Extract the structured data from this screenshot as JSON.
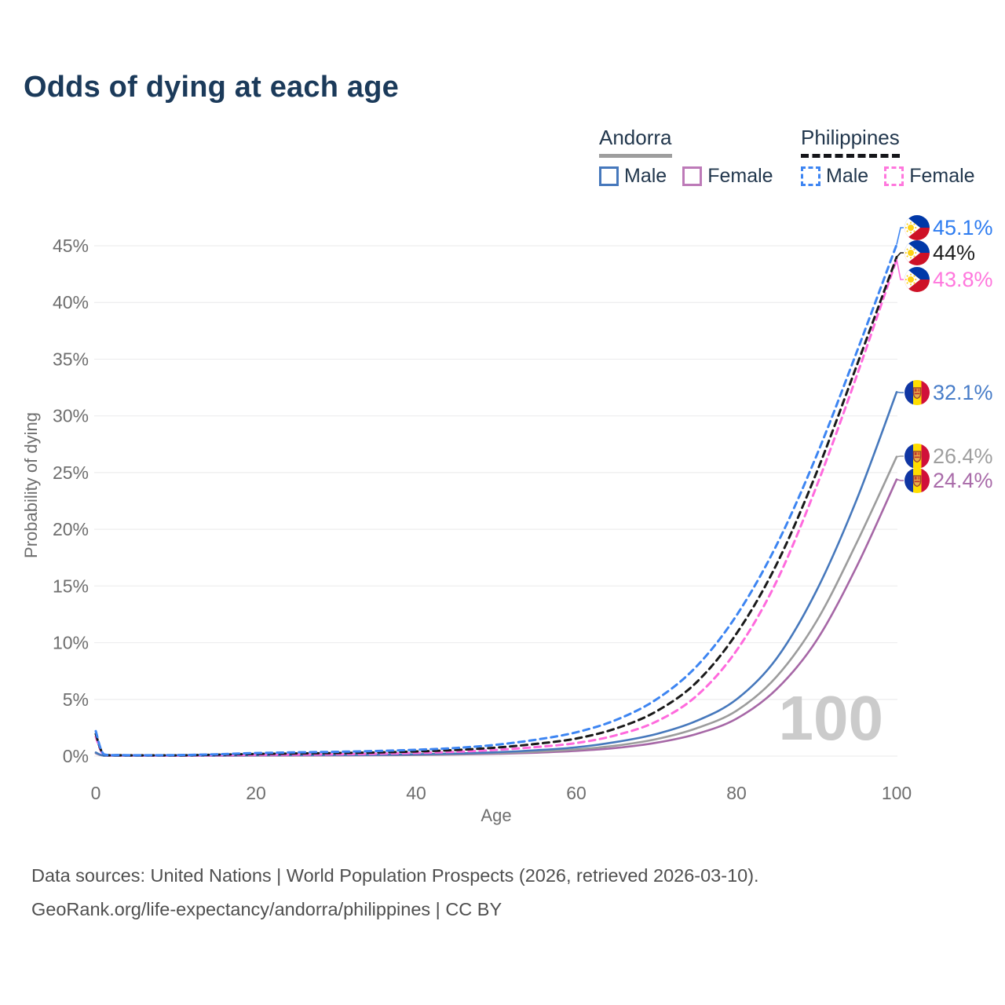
{
  "title": "Odds of dying at each age",
  "legend": {
    "andorra": {
      "label": "Andorra",
      "male": "Male",
      "female": "Female"
    },
    "philippines": {
      "label": "Philippines",
      "male": "Male",
      "female": "Female"
    }
  },
  "chart_data": {
    "type": "line",
    "title": "Odds of dying at each age",
    "xlabel": "Age",
    "ylabel": "Probability of dying",
    "x_ticks": [
      0,
      20,
      40,
      60,
      80,
      100
    ],
    "y_ticks": [
      "0%",
      "5%",
      "10%",
      "15%",
      "20%",
      "25%",
      "30%",
      "35%",
      "40%",
      "45%"
    ],
    "xlim": [
      0,
      100
    ],
    "ylim_pct": [
      0,
      45
    ],
    "grid": "horizontal-only",
    "legend_position": "top-right",
    "watermark": "100",
    "series": [
      {
        "name": "Philippines Male",
        "country": "Philippines",
        "sex": "Male",
        "style": "dashed",
        "color": "#3d85f2",
        "label_color": "#2e7cf0",
        "flag": "philippines",
        "end_label": "45.1%",
        "end_value_pct": 45.1,
        "points": [
          [
            0,
            2.2
          ],
          [
            1,
            0.16
          ],
          [
            3,
            0.09
          ],
          [
            5,
            0.08
          ],
          [
            10,
            0.09
          ],
          [
            15,
            0.16
          ],
          [
            20,
            0.27
          ],
          [
            25,
            0.33
          ],
          [
            30,
            0.38
          ],
          [
            35,
            0.45
          ],
          [
            40,
            0.56
          ],
          [
            45,
            0.72
          ],
          [
            50,
            1.0
          ],
          [
            55,
            1.45
          ],
          [
            60,
            2.1
          ],
          [
            65,
            3.2
          ],
          [
            70,
            5.0
          ],
          [
            75,
            7.9
          ],
          [
            80,
            12.4
          ],
          [
            85,
            18.6
          ],
          [
            90,
            26.5
          ],
          [
            95,
            35.6
          ],
          [
            100,
            45.1
          ]
        ]
      },
      {
        "name": "Philippines Both sexes",
        "country": "Philippines",
        "sex": "Both",
        "style": "dashed",
        "color": "#1a1a1a",
        "label_color": "#1f1f1f",
        "flag": "philippines",
        "end_label": "44%",
        "end_value_pct": 44.0,
        "points": [
          [
            0,
            1.95
          ],
          [
            1,
            0.14
          ],
          [
            3,
            0.08
          ],
          [
            5,
            0.07
          ],
          [
            10,
            0.07
          ],
          [
            15,
            0.12
          ],
          [
            20,
            0.19
          ],
          [
            25,
            0.23
          ],
          [
            30,
            0.27
          ],
          [
            35,
            0.32
          ],
          [
            40,
            0.41
          ],
          [
            45,
            0.54
          ],
          [
            50,
            0.75
          ],
          [
            55,
            1.08
          ],
          [
            60,
            1.55
          ],
          [
            65,
            2.45
          ],
          [
            70,
            3.95
          ],
          [
            75,
            6.5
          ],
          [
            80,
            10.8
          ],
          [
            85,
            16.9
          ],
          [
            90,
            25.0
          ],
          [
            95,
            34.4
          ],
          [
            100,
            44.0
          ]
        ]
      },
      {
        "name": "Philippines Female",
        "country": "Philippines",
        "sex": "Female",
        "style": "dashed",
        "color": "#ff6add",
        "label_color": "#ff77dd",
        "flag": "philippines",
        "end_label": "43.8%",
        "end_value_pct": 43.8,
        "points": [
          [
            0,
            1.7
          ],
          [
            1,
            0.12
          ],
          [
            3,
            0.07
          ],
          [
            5,
            0.06
          ],
          [
            10,
            0.05
          ],
          [
            15,
            0.08
          ],
          [
            20,
            0.11
          ],
          [
            25,
            0.13
          ],
          [
            30,
            0.16
          ],
          [
            35,
            0.21
          ],
          [
            40,
            0.28
          ],
          [
            45,
            0.38
          ],
          [
            50,
            0.55
          ],
          [
            55,
            0.8
          ],
          [
            60,
            1.15
          ],
          [
            65,
            1.85
          ],
          [
            70,
            3.05
          ],
          [
            75,
            5.3
          ],
          [
            80,
            9.3
          ],
          [
            85,
            15.4
          ],
          [
            90,
            23.8
          ],
          [
            95,
            33.5
          ],
          [
            100,
            43.8
          ]
        ]
      },
      {
        "name": "Andorra Male",
        "country": "Andorra",
        "sex": "Male",
        "style": "solid",
        "color": "#4678bc",
        "label_color": "#477cc8",
        "flag": "andorra",
        "end_label": "32.1%",
        "end_value_pct": 32.1,
        "points": [
          [
            0,
            0.32
          ],
          [
            1,
            0.04
          ],
          [
            3,
            0.02
          ],
          [
            5,
            0.02
          ],
          [
            10,
            0.02
          ],
          [
            15,
            0.05
          ],
          [
            20,
            0.08
          ],
          [
            25,
            0.09
          ],
          [
            30,
            0.1
          ],
          [
            35,
            0.12
          ],
          [
            40,
            0.16
          ],
          [
            45,
            0.23
          ],
          [
            50,
            0.34
          ],
          [
            55,
            0.52
          ],
          [
            60,
            0.78
          ],
          [
            65,
            1.25
          ],
          [
            70,
            1.95
          ],
          [
            75,
            3.1
          ],
          [
            80,
            5.0
          ],
          [
            85,
            8.6
          ],
          [
            90,
            14.6
          ],
          [
            95,
            22.6
          ],
          [
            100,
            32.1
          ]
        ]
      },
      {
        "name": "Andorra Both sexes",
        "country": "Andorra",
        "sex": "Both",
        "style": "solid",
        "color": "#9c9c9c",
        "label_color": "#9e9e9e",
        "flag": "andorra",
        "end_label": "26.4%",
        "end_value_pct": 26.4,
        "points": [
          [
            0,
            0.28
          ],
          [
            1,
            0.03
          ],
          [
            3,
            0.02
          ],
          [
            5,
            0.015
          ],
          [
            10,
            0.015
          ],
          [
            15,
            0.035
          ],
          [
            20,
            0.055
          ],
          [
            25,
            0.065
          ],
          [
            30,
            0.075
          ],
          [
            35,
            0.095
          ],
          [
            40,
            0.125
          ],
          [
            45,
            0.18
          ],
          [
            50,
            0.26
          ],
          [
            55,
            0.39
          ],
          [
            60,
            0.59
          ],
          [
            65,
            0.93
          ],
          [
            70,
            1.5
          ],
          [
            75,
            2.45
          ],
          [
            80,
            4.0
          ],
          [
            85,
            7.0
          ],
          [
            90,
            11.9
          ],
          [
            95,
            18.8
          ],
          [
            100,
            26.4
          ]
        ]
      },
      {
        "name": "Andorra Female",
        "country": "Andorra",
        "sex": "Female",
        "style": "solid",
        "color": "#a667a6",
        "label_color": "#a96ba9",
        "flag": "andorra",
        "end_label": "24.4%",
        "end_value_pct": 24.4,
        "points": [
          [
            0,
            0.25
          ],
          [
            1,
            0.025
          ],
          [
            3,
            0.015
          ],
          [
            5,
            0.01
          ],
          [
            10,
            0.01
          ],
          [
            15,
            0.02
          ],
          [
            20,
            0.035
          ],
          [
            25,
            0.045
          ],
          [
            30,
            0.055
          ],
          [
            35,
            0.07
          ],
          [
            40,
            0.095
          ],
          [
            45,
            0.14
          ],
          [
            50,
            0.2
          ],
          [
            55,
            0.3
          ],
          [
            60,
            0.46
          ],
          [
            65,
            0.72
          ],
          [
            70,
            1.18
          ],
          [
            75,
            1.95
          ],
          [
            80,
            3.3
          ],
          [
            85,
            5.9
          ],
          [
            90,
            10.2
          ],
          [
            95,
            16.7
          ],
          [
            100,
            24.4
          ]
        ]
      }
    ]
  },
  "footer": {
    "line1": "Data sources: United Nations | World Population Prospects (2026, retrieved 2026-03-10).",
    "line2": "GeoRank.org/life-expectancy/andorra/philippines | CC BY"
  }
}
